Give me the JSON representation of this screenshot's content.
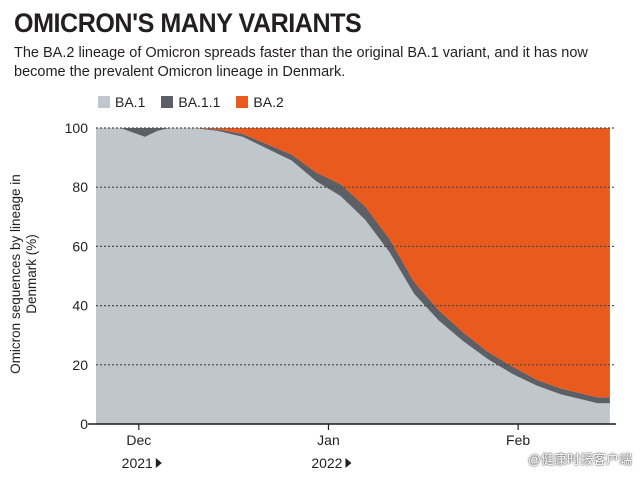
{
  "chart_data": {
    "type": "area",
    "title": "OMICRON'S MANY VARIANTS",
    "subtitle": "The BA.2 lineage of Omicron spreads faster than the original BA.1 variant, and it has now become the prevalent Omicron lineage in Denmark.",
    "ylabel": "Omicron sequences by lineage in Denmark (%)",
    "ylim": [
      0,
      100
    ],
    "yticks": [
      0,
      20,
      40,
      60,
      80,
      100
    ],
    "xlim": [
      0,
      85
    ],
    "xticks": [
      {
        "pos": 7,
        "label": "Dec",
        "year": "2021"
      },
      {
        "pos": 38,
        "label": "Jan",
        "year": "2022"
      },
      {
        "pos": 69,
        "label": "Feb",
        "year": ""
      }
    ],
    "stacked": true,
    "days": [
      0,
      4,
      8,
      10,
      12,
      16,
      20,
      24,
      28,
      32,
      36,
      40,
      44,
      48,
      52,
      56,
      60,
      64,
      68,
      72,
      76,
      80,
      82,
      84
    ],
    "series": [
      {
        "name": "BA.1",
        "color": "#bfc6cc",
        "values": [
          100,
          100,
          97,
          99,
          100,
          100,
          99,
          97,
          93,
          89,
          82,
          77,
          69,
          58,
          44,
          35,
          28,
          22,
          17,
          13,
          10,
          8,
          7,
          7
        ]
      },
      {
        "name": "BA.1.1",
        "color": "#5c6066",
        "values": [
          0,
          0,
          3,
          1,
          0,
          0,
          0.5,
          1,
          1.5,
          2,
          3,
          4,
          4.5,
          4.5,
          4,
          3.5,
          3,
          2.5,
          2.5,
          2,
          2,
          2,
          2,
          2
        ]
      },
      {
        "name": "BA.2",
        "color": "#e85a1e",
        "values": [
          0,
          0,
          0,
          0,
          0,
          0,
          0.5,
          2,
          5.5,
          9,
          15,
          19,
          26.5,
          37.5,
          52,
          61.5,
          69,
          75.5,
          80.5,
          85,
          88,
          90,
          91,
          91
        ]
      }
    ]
  },
  "watermark": "@健康时报客户端"
}
